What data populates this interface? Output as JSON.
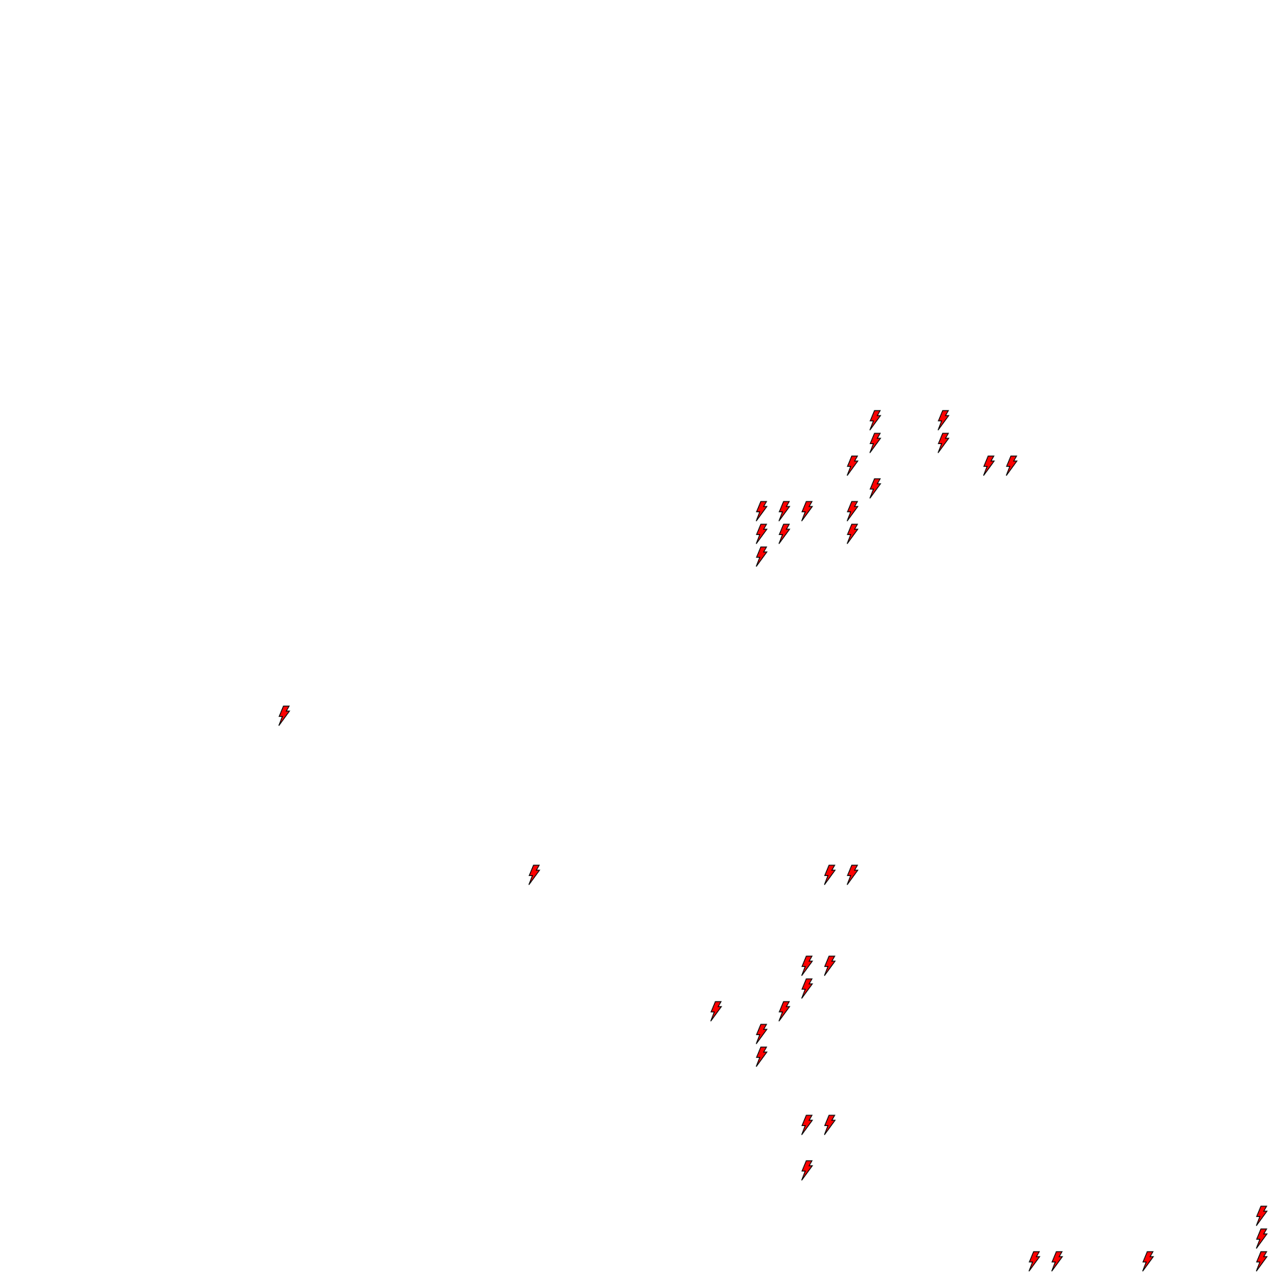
{
  "map": {
    "background_color": "#ffffff",
    "marker_icon": "lightning-bolt-icon",
    "marker_fill": "#ff0000",
    "marker_stroke": "#000000"
  }
}
